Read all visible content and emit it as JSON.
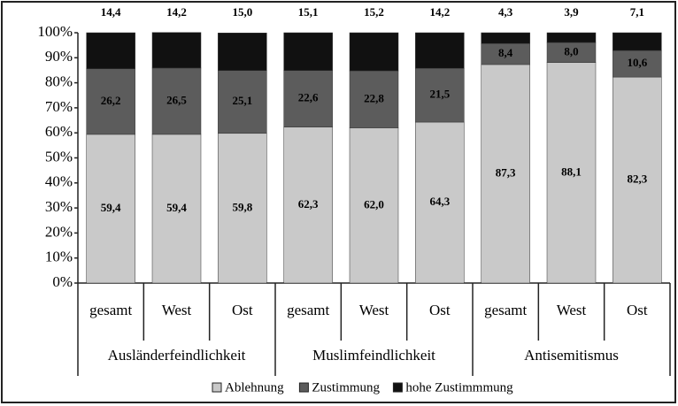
{
  "chart_data": {
    "type": "stacked_bar",
    "groups": [
      {
        "label": "Ausländerfeindlichkeit",
        "categories": [
          "gesamt",
          "West",
          "Ost"
        ]
      },
      {
        "label": "Muslimfeindlichkeit",
        "categories": [
          "gesamt",
          "West",
          "Ost"
        ]
      },
      {
        "label": "Antisemitismus",
        "categories": [
          "gesamt",
          "West",
          "Ost"
        ]
      }
    ],
    "series": [
      {
        "name": "Ablehnung",
        "color": "#c9c9c9",
        "values": [
          59.4,
          59.4,
          59.8,
          62.3,
          62.0,
          64.3,
          87.3,
          88.1,
          82.3
        ],
        "value_labels": [
          "59,4",
          "59,4",
          "59,8",
          "62,3",
          "62,0",
          "64,3",
          "87,3",
          "88,1",
          "82,3"
        ]
      },
      {
        "name": "Zustimmung",
        "color": "#5c5c5c",
        "values": [
          26.2,
          26.5,
          25.1,
          22.6,
          22.8,
          21.5,
          8.4,
          8.0,
          10.6
        ],
        "value_labels": [
          "26,2",
          "26,5",
          "25,1",
          "22,6",
          "22,8",
          "21,5",
          "8,4",
          "8,0",
          "10,6"
        ]
      },
      {
        "name": "hohe Zustimmmung",
        "color": "#111111",
        "values": [
          14.4,
          14.2,
          15.0,
          15.1,
          15.2,
          14.2,
          4.3,
          3.9,
          7.1
        ],
        "value_labels": [
          "14,4",
          "14,2",
          "15,0",
          "15,1",
          "15,2",
          "14,2",
          "4,3",
          "3,9",
          "7,1"
        ]
      }
    ],
    "ylim": [
      0,
      100
    ],
    "yticks": [
      {
        "value": 0,
        "label": "0%"
      },
      {
        "value": 10,
        "label": "10%"
      },
      {
        "value": 20,
        "label": "20%"
      },
      {
        "value": 30,
        "label": "30%"
      },
      {
        "value": 40,
        "label": "40%"
      },
      {
        "value": 50,
        "label": "50%"
      },
      {
        "value": 60,
        "label": "60%"
      },
      {
        "value": 70,
        "label": "70%"
      },
      {
        "value": 80,
        "label": "80%"
      },
      {
        "value": 90,
        "label": "90%"
      },
      {
        "value": 100,
        "label": "100%"
      }
    ],
    "grid": false,
    "legend": "bottom"
  }
}
